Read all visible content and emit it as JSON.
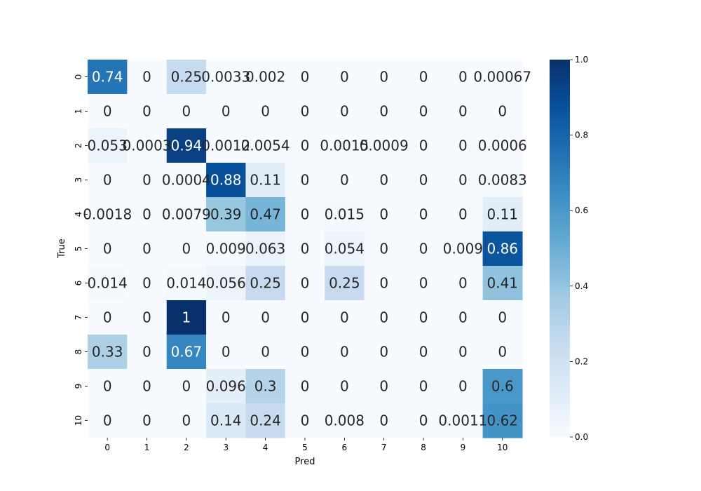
{
  "chart_data": {
    "type": "heatmap",
    "title": "",
    "xlabel": "Pred",
    "ylabel": "True",
    "x_categories": [
      "0",
      "1",
      "2",
      "3",
      "4",
      "5",
      "6",
      "7",
      "8",
      "9",
      "10"
    ],
    "y_categories": [
      "0",
      "1",
      "2",
      "3",
      "4",
      "5",
      "6",
      "7",
      "8",
      "9",
      "10"
    ],
    "values": [
      [
        0.74,
        0,
        0.25,
        0.0033,
        0.002,
        0,
        0,
        0,
        0,
        0,
        0.00067
      ],
      [
        0,
        0,
        0,
        0,
        0,
        0,
        0,
        0,
        0,
        0,
        0
      ],
      [
        0.053,
        0.0003,
        0.94,
        0.0012,
        0.0054,
        0,
        0.0015,
        0.0009,
        0,
        0,
        0.0006
      ],
      [
        0,
        0,
        0.0004,
        0.88,
        0.11,
        0,
        0,
        0,
        0,
        0,
        0.0083
      ],
      [
        0.0018,
        0,
        0.0079,
        0.39,
        0.47,
        0,
        0.015,
        0,
        0,
        0,
        0.11
      ],
      [
        0,
        0,
        0,
        0.009,
        0.063,
        0,
        0.054,
        0,
        0,
        0.009,
        0.86
      ],
      [
        0.014,
        0,
        0.014,
        0.056,
        0.25,
        0,
        0.25,
        0,
        0,
        0,
        0.41
      ],
      [
        0,
        0,
        1,
        0,
        0,
        0,
        0,
        0,
        0,
        0,
        0
      ],
      [
        0.33,
        0,
        0.67,
        0,
        0,
        0,
        0,
        0,
        0,
        0,
        0
      ],
      [
        0,
        0,
        0,
        0.096,
        0.3,
        0,
        0,
        0,
        0,
        0,
        0.6
      ],
      [
        0,
        0,
        0,
        0.14,
        0.24,
        0,
        0.008,
        0,
        0,
        0.0011,
        0.62
      ]
    ],
    "labels": [
      [
        "0.74",
        "0",
        "0.25",
        "0.0033",
        "0.002",
        "0",
        "0",
        "0",
        "0",
        "0",
        "0.00067"
      ],
      [
        "0",
        "0",
        "0",
        "0",
        "0",
        "0",
        "0",
        "0",
        "0",
        "0",
        "0"
      ],
      [
        "0.053",
        "0.0003",
        "0.94",
        "0.0012",
        "0.0054",
        "0",
        "0.0015",
        "0.0009",
        "0",
        "0",
        "0.0006"
      ],
      [
        "0",
        "0",
        "0.0004",
        "0.88",
        "0.11",
        "0",
        "0",
        "0",
        "0",
        "0",
        "0.0083"
      ],
      [
        "0.0018",
        "0",
        "0.0079",
        "0.39",
        "0.47",
        "0",
        "0.015",
        "0",
        "0",
        "0",
        "0.11"
      ],
      [
        "0",
        "0",
        "0",
        "0.009",
        "0.063",
        "0",
        "0.054",
        "0",
        "0",
        "0.009",
        "0.86"
      ],
      [
        "0.014",
        "0",
        "0.014",
        "0.056",
        "0.25",
        "0",
        "0.25",
        "0",
        "0",
        "0",
        "0.41"
      ],
      [
        "0",
        "0",
        "1",
        "0",
        "0",
        "0",
        "0",
        "0",
        "0",
        "0",
        "0"
      ],
      [
        "0.33",
        "0",
        "0.67",
        "0",
        "0",
        "0",
        "0",
        "0",
        "0",
        "0",
        "0"
      ],
      [
        "0",
        "0",
        "0",
        "0.096",
        "0.3",
        "0",
        "0",
        "0",
        "0",
        "0",
        "0.6"
      ],
      [
        "0",
        "0",
        "0",
        "0.14",
        "0.24",
        "0",
        "0.008",
        "0",
        "0",
        "0.0011",
        "0.62"
      ]
    ],
    "colormap": "Blues",
    "vmin": 0.0,
    "vmax": 1.0,
    "colorbar_ticks": [
      "0.0",
      "0.2",
      "0.4",
      "0.6",
      "0.8",
      "1.0"
    ],
    "colorbar_tick_values": [
      0.0,
      0.2,
      0.4,
      0.6,
      0.8,
      1.0
    ],
    "colorbar_placement": "right",
    "grid": false
  }
}
